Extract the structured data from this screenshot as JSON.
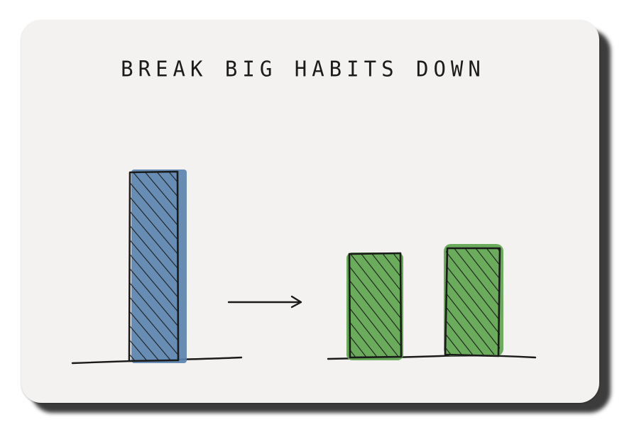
{
  "title": "BREAK BIG HABITS DOWN",
  "colors": {
    "paper": "#f3f2f0",
    "ink": "#1b1b1b",
    "big_bar_fill": "#5b84b0",
    "small_bar_fill": "#63a653"
  },
  "figure": {
    "left_group": {
      "bars": 1,
      "color": "blue"
    },
    "arrow": "right-arrow",
    "right_group": {
      "bars": 2,
      "color": "green"
    }
  }
}
